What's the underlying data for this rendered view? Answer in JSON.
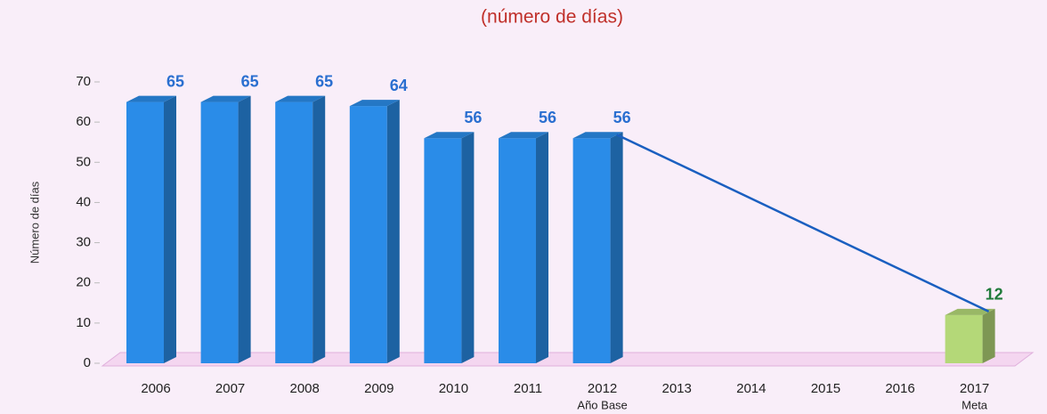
{
  "chart_data": {
    "type": "bar",
    "subtitle": "(número de días)",
    "y_label": "Número de días",
    "categories": [
      "2006",
      "2007",
      "2008",
      "2009",
      "2010",
      "2011",
      "2012",
      "2013",
      "2014",
      "2015",
      "2016",
      "2017"
    ],
    "category_notes": [
      null,
      null,
      null,
      null,
      null,
      null,
      "Año Base",
      null,
      null,
      null,
      null,
      "Meta"
    ],
    "values": [
      65,
      65,
      65,
      64,
      56,
      56,
      56,
      null,
      null,
      null,
      null,
      12
    ],
    "colors": [
      "#2a8ce8",
      "#2a8ce8",
      "#2a8ce8",
      "#2a8ce8",
      "#2a8ce8",
      "#2a8ce8",
      "#2a8ce8",
      null,
      null,
      null,
      null,
      "#b4d878"
    ],
    "label_colors": [
      "#2a6fd0",
      "#2a6fd0",
      "#2a6fd0",
      "#2a6fd0",
      "#2a6fd0",
      "#2a6fd0",
      "#2a6fd0",
      null,
      null,
      null,
      null,
      "#1f7a3a"
    ],
    "line_color": "#1a5fc0",
    "ylim": [
      0,
      70
    ],
    "yticks": [
      0,
      10,
      20,
      30,
      40,
      50,
      60,
      70
    ]
  }
}
